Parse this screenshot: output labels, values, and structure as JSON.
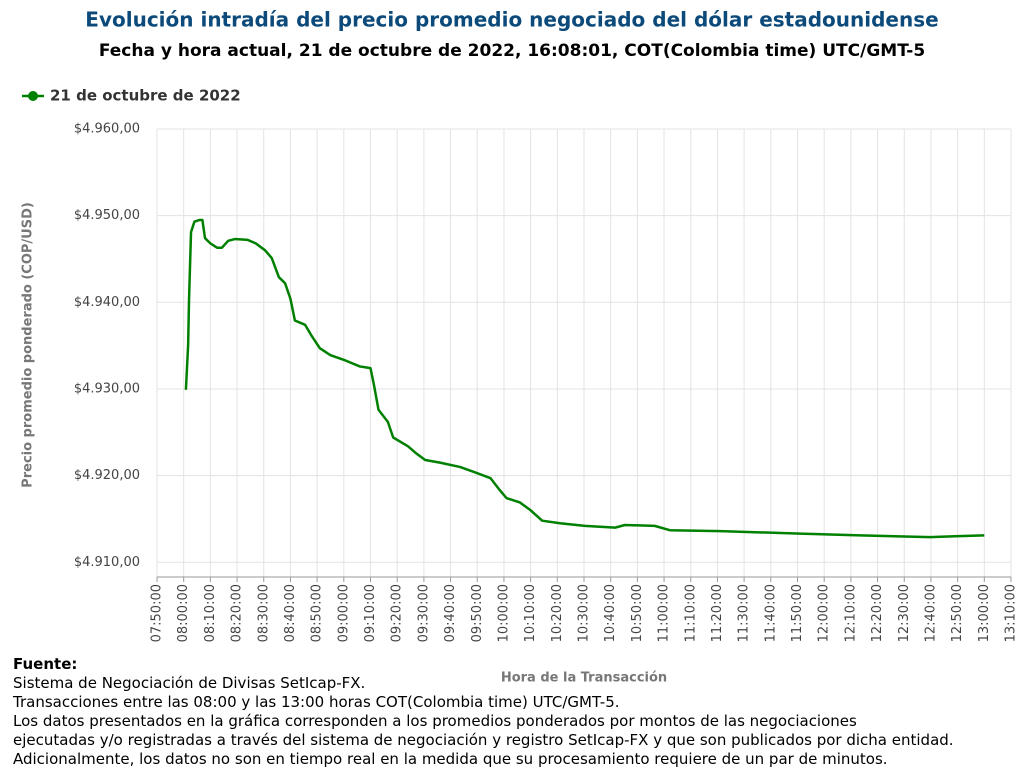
{
  "chart_data": {
    "type": "line",
    "title": "Evolución intradía del precio promedio negociado del dólar estadounidense",
    "subtitle": "Fecha y hora actual, 21 de octubre de 2022, 16:08:01, COT(Colombia time) UTC/GMT-5",
    "x_label": "Hora de la Transacción",
    "y_label": "Precio promedio ponderado (COP/USD)",
    "x": [
      "08:00:50",
      "08:01:40",
      "08:02:00",
      "08:02:45",
      "08:04:00",
      "08:06:00",
      "08:07:00",
      "08:08:00",
      "08:10:00",
      "08:12:30",
      "08:14:20",
      "08:16:40",
      "08:19:10",
      "08:24:00",
      "08:27:00",
      "08:30:30",
      "08:33:00",
      "08:35:40",
      "08:38:00",
      "08:40:00",
      "08:41:40",
      "08:45:30",
      "08:48:00",
      "08:51:00",
      "08:55:00",
      "09:00:30",
      "09:06:00",
      "09:10:00",
      "09:11:20",
      "09:13:00",
      "09:16:30",
      "09:18:30",
      "09:24:00",
      "09:27:00",
      "09:30:30",
      "09:36:00",
      "09:43:30",
      "09:49:00",
      "09:55:00",
      "09:58:30",
      "10:01:00",
      "10:06:00",
      "10:10:00",
      "10:14:20",
      "10:21:00",
      "10:30:20",
      "10:41:40",
      "10:45:20",
      "10:56:30",
      "11:02:10",
      "11:21:00",
      "11:51:00",
      "12:13:30",
      "12:39:40",
      "12:49:00",
      "13:00:00"
    ],
    "series": [
      {
        "name": "21 de octubre de 2022",
        "color": "#008000",
        "values": [
          4929.9,
          4935.1,
          4940.3,
          4948.1,
          4949.3,
          4949.5,
          4949.5,
          4947.4,
          4946.8,
          4946.3,
          4946.3,
          4947.1,
          4947.3,
          4947.2,
          4946.8,
          4946.0,
          4945.1,
          4942.9,
          4942.2,
          4940.4,
          4937.9,
          4937.4,
          4936.1,
          4934.7,
          4933.9,
          4933.3,
          4932.6,
          4932.4,
          4930.4,
          4927.6,
          4926.2,
          4924.4,
          4923.4,
          4922.6,
          4921.8,
          4921.5,
          4921.0,
          4920.4,
          4919.7,
          4918.3,
          4917.4,
          4916.9,
          4916.0,
          4914.8,
          4914.5,
          4914.2,
          4914.0,
          4914.3,
          4914.2,
          4913.7,
          4913.6,
          4913.3,
          4913.1,
          4912.9,
          4913.0,
          4913.1
        ]
      }
    ],
    "xlim": [
      "07:50:00",
      "13:10:00"
    ],
    "xticks": [
      "07:50:00",
      "08:00:00",
      "08:10:00",
      "08:20:00",
      "08:30:00",
      "08:40:00",
      "08:50:00",
      "09:00:00",
      "09:10:00",
      "09:20:00",
      "09:30:00",
      "09:40:00",
      "09:50:00",
      "10:00:00",
      "10:10:00",
      "10:20:00",
      "10:30:00",
      "10:40:00",
      "10:50:00",
      "11:00:00",
      "11:10:00",
      "11:20:00",
      "11:30:00",
      "11:40:00",
      "11:50:00",
      "12:00:00",
      "12:10:00",
      "12:20:00",
      "12:30:00",
      "12:40:00",
      "12:50:00",
      "13:00:00",
      "13:10:00"
    ],
    "ylim": [
      4908.3,
      4960
    ],
    "yticks": [
      {
        "value": 4910,
        "label": "$4.910,00"
      },
      {
        "value": 4920,
        "label": "$4.920,00"
      },
      {
        "value": 4930,
        "label": "$4.930,00"
      },
      {
        "value": 4940,
        "label": "$4.940,00"
      },
      {
        "value": 4950,
        "label": "$4.950,00"
      },
      {
        "value": 4960,
        "label": "$4.960,00"
      }
    ],
    "grid": true,
    "legend": "top-left",
    "notes": [
      "Fuente:",
      "Sistema de Negociación de Divisas SetIcap-FX.",
      "Transacciones entre las 08:00 y las 13:00 horas COT(Colombia time) UTC/GMT-5.",
      "Los datos presentados en la gráfica corresponden a los promedios ponderados por montos de las negociaciones",
      "ejecutadas y/o registradas a través del sistema de negociación y registro SetIcap-FX y que son publicados por dicha entidad.",
      "Adicionalmente, los datos no son en tiempo real en la medida que su procesamiento requiere de un par de minutos."
    ]
  }
}
